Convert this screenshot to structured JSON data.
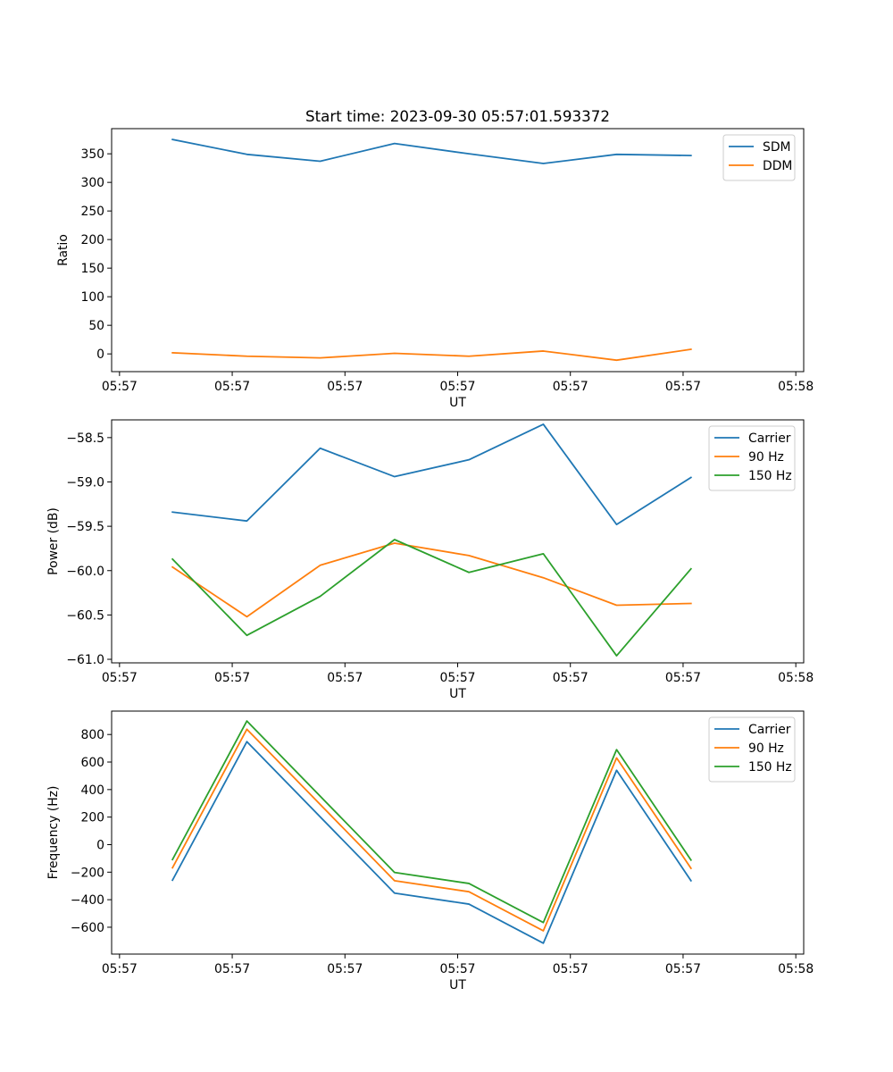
{
  "figure_title": "Start time: 2023-09-30 05:57:01.593372",
  "chart_data": [
    {
      "type": "line",
      "title": "Start time: 2023-09-30 05:57:01.593372",
      "xlabel": "UT",
      "ylabel": "Ratio",
      "x_tick_labels": [
        "05:57",
        "05:57",
        "05:57",
        "05:57",
        "05:57",
        "05:57",
        "05:58"
      ],
      "x_tick_positions": [
        0,
        1,
        2,
        3,
        4,
        5,
        6
      ],
      "xlim": [
        -0.07,
        6.07
      ],
      "x": [
        0.47,
        1.13,
        1.78,
        2.44,
        3.1,
        3.76,
        4.41,
        5.07
      ],
      "yticks": [
        0,
        50,
        100,
        150,
        200,
        250,
        300,
        350
      ],
      "ylim": [
        -31,
        394
      ],
      "legend_loc": "upper right",
      "series": [
        {
          "name": "SDM",
          "color": "#1f77b4",
          "values": [
            375,
            349,
            337,
            368,
            350,
            333,
            349,
            347
          ]
        },
        {
          "name": "DDM",
          "color": "#ff7f0e",
          "values": [
            2,
            -4,
            -7,
            1,
            -4,
            5,
            -11,
            8
          ]
        }
      ]
    },
    {
      "type": "line",
      "title": "",
      "xlabel": "UT",
      "ylabel": "Power (dB)",
      "x_tick_labels": [
        "05:57",
        "05:57",
        "05:57",
        "05:57",
        "05:57",
        "05:57",
        "05:58"
      ],
      "x_tick_positions": [
        0,
        1,
        2,
        3,
        4,
        5,
        6
      ],
      "xlim": [
        -0.07,
        6.07
      ],
      "x": [
        0.47,
        1.13,
        1.78,
        2.44,
        3.1,
        3.76,
        4.41,
        5.07
      ],
      "yticks": [
        -61.0,
        -60.5,
        -60.0,
        -59.5,
        -59.0,
        -58.5
      ],
      "ytick_labels": [
        "−61.0",
        "−60.5",
        "−60.0",
        "−59.5",
        "−59.0",
        "−58.5"
      ],
      "ylim": [
        -61.04,
        -58.3
      ],
      "legend_loc": "upper right",
      "series": [
        {
          "name": "Carrier",
          "color": "#1f77b4",
          "values": [
            -59.34,
            -59.44,
            -58.62,
            -58.94,
            -58.75,
            -58.35,
            -59.48,
            -58.95
          ]
        },
        {
          "name": "90 Hz",
          "color": "#ff7f0e",
          "values": [
            -59.96,
            -60.52,
            -59.94,
            -59.69,
            -59.83,
            -60.08,
            -60.39,
            -60.37
          ]
        },
        {
          "name": "150 Hz",
          "color": "#2ca02c",
          "values": [
            -59.87,
            -60.73,
            -60.29,
            -59.65,
            -60.02,
            -59.81,
            -60.96,
            -59.98
          ]
        }
      ]
    },
    {
      "type": "line",
      "title": "",
      "xlabel": "UT",
      "ylabel": "Frequency (Hz)",
      "x_tick_labels": [
        "05:57",
        "05:57",
        "05:57",
        "05:57",
        "05:57",
        "05:57",
        "05:58"
      ],
      "x_tick_positions": [
        0,
        1,
        2,
        3,
        4,
        5,
        6
      ],
      "xlim": [
        -0.07,
        6.07
      ],
      "x": [
        0.47,
        1.13,
        1.78,
        2.44,
        3.1,
        3.76,
        4.41,
        5.07
      ],
      "yticks": [
        -600,
        -400,
        -200,
        0,
        200,
        400,
        600,
        800
      ],
      "ytick_labels": [
        "−600",
        "−400",
        "−200",
        "0",
        "200",
        "400",
        "600",
        "800"
      ],
      "ylim": [
        -795,
        970
      ],
      "legend_loc": "upper right",
      "series": [
        {
          "name": "Carrier",
          "color": "#1f77b4",
          "values": [
            -258,
            748,
            null,
            -352,
            -432,
            -716,
            540,
            -262
          ]
        },
        {
          "name": "90 Hz",
          "color": "#ff7f0e",
          "values": [
            -168,
            838,
            null,
            -262,
            -342,
            -626,
            630,
            -172
          ]
        },
        {
          "name": "150 Hz",
          "color": "#2ca02c",
          "values": [
            -108,
            898,
            null,
            -202,
            -282,
            -566,
            690,
            -112
          ]
        }
      ]
    }
  ]
}
